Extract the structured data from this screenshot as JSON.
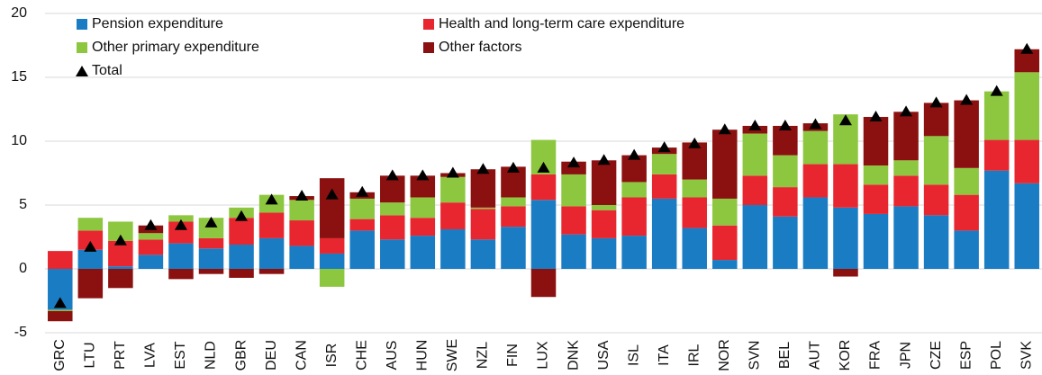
{
  "chart_data": {
    "type": "stacked_bar",
    "categories": [
      "GRC",
      "LTU",
      "PRT",
      "LVA",
      "EST",
      "NLD",
      "GBR",
      "DEU",
      "CAN",
      "ISR",
      "CHE",
      "AUS",
      "HUN",
      "SWE",
      "NZL",
      "FIN",
      "LUX",
      "DNK",
      "USA",
      "ISL",
      "ITA",
      "IRL",
      "NOR",
      "SVN",
      "BEL",
      "AUT",
      "KOR",
      "FRA",
      "JPN",
      "CZE",
      "ESP",
      "POL",
      "SVK"
    ],
    "series": [
      {
        "name": "Pension expenditure",
        "color": "#1a7dc4",
        "values": [
          -3.2,
          1.5,
          0.2,
          1.1,
          2.0,
          1.6,
          1.9,
          2.4,
          1.8,
          1.2,
          3.0,
          2.3,
          2.6,
          3.1,
          2.3,
          3.3,
          5.4,
          2.7,
          2.4,
          2.6,
          5.5,
          3.2,
          0.7,
          5.0,
          4.1,
          5.6,
          4.8,
          4.3,
          4.9,
          4.2,
          3.0,
          7.7,
          6.7
        ]
      },
      {
        "name": "Health and long-term care expenditure",
        "color": "#e8262f",
        "values": [
          1.4,
          1.5,
          2.0,
          1.2,
          1.7,
          0.8,
          2.1,
          2.0,
          2.0,
          1.2,
          0.9,
          1.9,
          1.4,
          2.1,
          2.4,
          1.6,
          2.0,
          2.2,
          2.2,
          3.0,
          1.9,
          2.4,
          2.7,
          2.3,
          2.3,
          2.6,
          3.4,
          2.3,
          2.4,
          2.4,
          2.8,
          2.4,
          3.4
        ]
      },
      {
        "name": "Other primary expenditure",
        "color": "#8dc63f",
        "values": [
          -0.1,
          1.0,
          1.5,
          0.5,
          0.5,
          1.6,
          0.8,
          1.4,
          1.6,
          -1.4,
          1.6,
          1.0,
          1.6,
          2.0,
          0.1,
          0.7,
          2.7,
          2.5,
          0.4,
          1.2,
          1.6,
          1.4,
          2.1,
          3.3,
          2.5,
          2.6,
          3.9,
          1.5,
          1.2,
          3.8,
          2.1,
          3.8,
          5.3
        ]
      },
      {
        "name": "Other factors",
        "color": "#8b1010",
        "values": [
          -0.8,
          -2.3,
          -1.5,
          0.6,
          -0.8,
          -0.4,
          -0.7,
          -0.4,
          0.3,
          4.7,
          0.5,
          2.1,
          1.7,
          0.3,
          3.0,
          2.4,
          -2.2,
          1.0,
          3.5,
          2.1,
          0.5,
          2.9,
          5.4,
          0.6,
          2.3,
          0.6,
          -0.6,
          3.8,
          3.8,
          2.6,
          5.3,
          0.0,
          1.8
        ]
      }
    ],
    "total": {
      "name": "Total",
      "color": "#000000",
      "values": [
        -2.7,
        1.7,
        2.2,
        3.4,
        3.4,
        3.6,
        4.1,
        5.4,
        5.7,
        5.8,
        6.0,
        7.3,
        7.3,
        7.5,
        7.8,
        7.9,
        7.9,
        8.3,
        8.5,
        8.9,
        9.5,
        9.8,
        10.9,
        11.2,
        11.2,
        11.3,
        11.6,
        11.9,
        12.3,
        13.0,
        13.2,
        13.9,
        17.2
      ]
    },
    "ylim": [
      -5,
      20
    ],
    "yticks": [
      -5,
      0,
      5,
      10,
      15,
      20
    ],
    "grid": true
  }
}
